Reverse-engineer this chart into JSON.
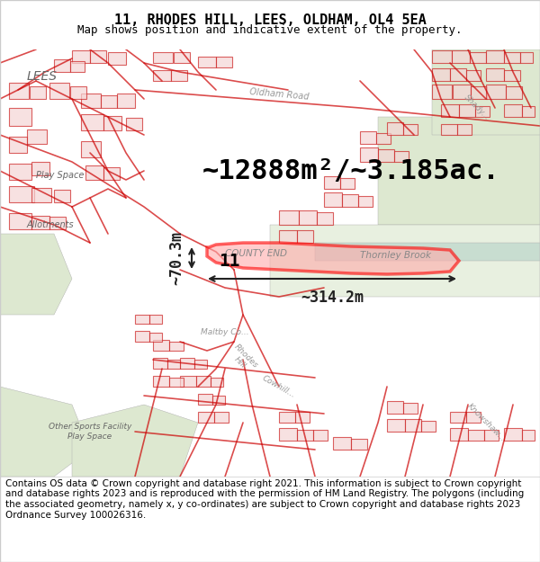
{
  "title_line1": "11, RHODES HILL, LEES, OLDHAM, OL4 5EA",
  "title_line2": "Map shows position and indicative extent of the property.",
  "area_text": "~12888m²/~3.185ac.",
  "dim_width": "~314.2m",
  "dim_height": "~70.3m",
  "property_label": "11",
  "location_label": "COUNTY END",
  "nearby_label": "Thornley Brook",
  "footer_text": "Contains OS data © Crown copyright and database right 2021. This information is subject to Crown copyright and database rights 2023 and is reproduced with the permission of HM Land Registry. The polygons (including the associated geometry, namely x, y co-ordinates) are subject to Crown copyright and database rights 2023 Ordnance Survey 100026316.",
  "title_bg": "#ffffff",
  "footer_bg": "#ffffff",
  "map_bg": "#f0ece4",
  "road_color": "#cc0000",
  "highlight_color": "#ff0000",
  "dim_color": "#222222",
  "title_fontsize": 11,
  "subtitle_fontsize": 9,
  "area_fontsize": 22,
  "dim_fontsize": 12,
  "label_fontsize": 11,
  "footer_fontsize": 7.5,
  "fig_width": 6.0,
  "fig_height": 6.25
}
